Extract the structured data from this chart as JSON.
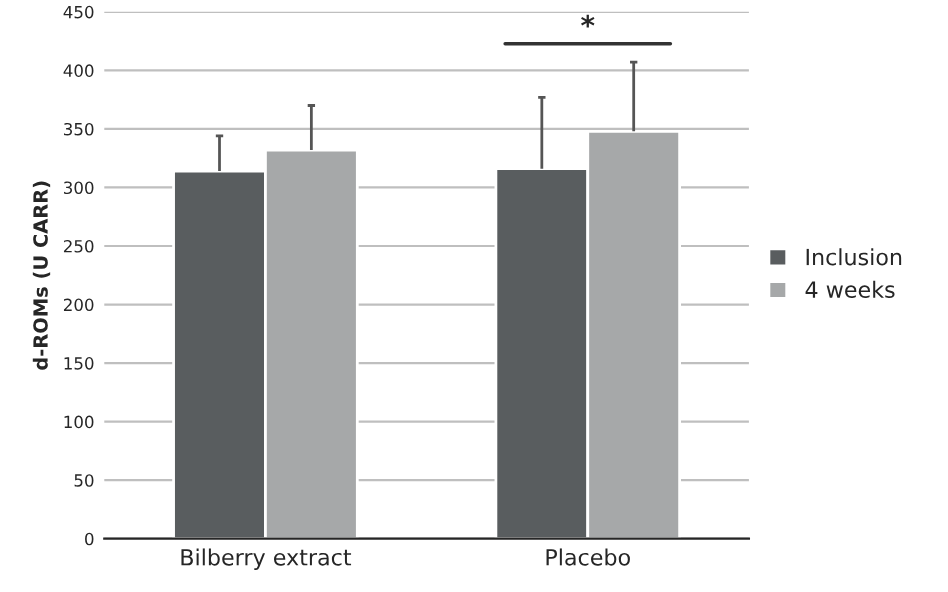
{
  "chart_data": {
    "type": "bar",
    "ylabel": "d-ROMs (U CARR)",
    "categories": [
      "Bilberry extract",
      "Placebo"
    ],
    "series": [
      {
        "name": "Inclusion",
        "color": "#595d5f",
        "values": [
          314,
          316
        ],
        "errors": [
          [
            314,
            344
          ],
          [
            316,
            377
          ]
        ]
      },
      {
        "name": "4 weeks",
        "color": "#a6a8a9",
        "values": [
          332,
          348
        ],
        "errors": [
          [
            332,
            370
          ],
          [
            348,
            407
          ]
        ]
      }
    ],
    "ylim": [
      0,
      450
    ],
    "yticks": [
      0,
      50,
      100,
      150,
      200,
      250,
      300,
      350,
      400,
      450
    ],
    "grid": "y",
    "legend": "right",
    "annotations": [
      "*"
    ]
  }
}
